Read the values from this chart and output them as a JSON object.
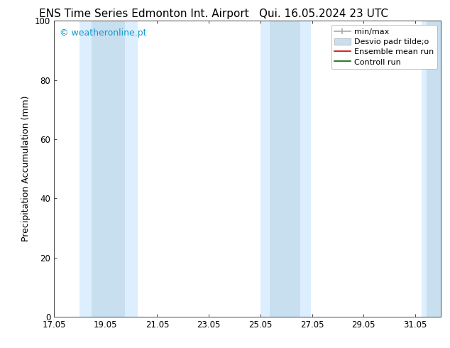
{
  "title_left": "ENS Time Series Edmonton Int. Airport",
  "title_right": "Qui. 16.05.2024 23 UTC",
  "ylabel": "Precipitation Accumulation (mm)",
  "watermark": "© weatheronline.pt",
  "watermark_color": "#1199cc",
  "ylim": [
    0,
    100
  ],
  "xlim": [
    17.05,
    32.05
  ],
  "xticks": [
    17.05,
    19.05,
    21.05,
    23.05,
    25.05,
    27.05,
    29.05,
    31.05
  ],
  "xtick_labels": [
    "17.05",
    "19.05",
    "21.05",
    "23.05",
    "25.05",
    "27.05",
    "29.05",
    "31.05"
  ],
  "yticks": [
    0,
    20,
    40,
    60,
    80,
    100
  ],
  "background_color": "#ffffff",
  "plot_bg_color": "#ffffff",
  "outer_bands": [
    {
      "x_start": 18.05,
      "x_end": 20.3,
      "color": "#ddeeff"
    },
    {
      "x_start": 25.05,
      "x_end": 27.0,
      "color": "#ddeeff"
    },
    {
      "x_start": 31.3,
      "x_end": 32.2,
      "color": "#ddeeff"
    }
  ],
  "inner_bands": [
    {
      "x_start": 18.5,
      "x_end": 19.8,
      "color": "#c8dff0"
    },
    {
      "x_start": 25.4,
      "x_end": 26.6,
      "color": "#c8dff0"
    },
    {
      "x_start": 31.5,
      "x_end": 32.2,
      "color": "#c8dff0"
    }
  ],
  "legend_minmax_color": "#aaaaaa",
  "legend_std_color": "#c8dff0",
  "legend_mean_color": "#cc0000",
  "legend_control_color": "#006600",
  "title_fontsize": 11,
  "watermark_fontsize": 9,
  "axis_label_fontsize": 9,
  "tick_fontsize": 8.5,
  "legend_fontsize": 8
}
